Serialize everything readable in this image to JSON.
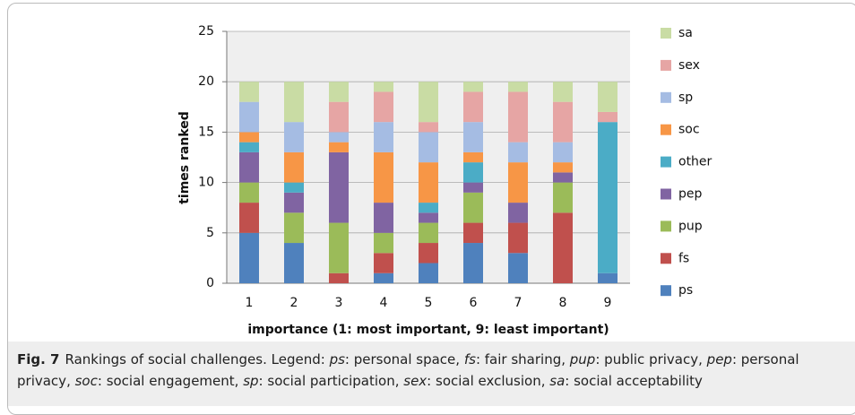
{
  "chart_data": {
    "type": "stacked_bar",
    "ylabel": "times ranked",
    "xlabel": "importance (1: most important, 9: least important)",
    "categories": [
      "1",
      "2",
      "3",
      "4",
      "5",
      "6",
      "7",
      "8",
      "9"
    ],
    "ylim": [
      0,
      25
    ],
    "yticks": [
      0,
      5,
      10,
      15,
      20,
      25
    ],
    "grid": true,
    "legend": "right",
    "series": [
      {
        "name": "ps",
        "color": "#4f81bd",
        "values": [
          5,
          4,
          0,
          1,
          2,
          4,
          3,
          0,
          1
        ]
      },
      {
        "name": "fs",
        "color": "#c0504d",
        "values": [
          3,
          0,
          1,
          2,
          2,
          2,
          3,
          7,
          0
        ]
      },
      {
        "name": "pup",
        "color": "#9bbb59",
        "values": [
          2,
          3,
          5,
          2,
          2,
          3,
          0,
          3,
          0
        ]
      },
      {
        "name": "pep",
        "color": "#8064a2",
        "values": [
          3,
          2,
          7,
          3,
          1,
          1,
          2,
          1,
          0
        ]
      },
      {
        "name": "other",
        "color": "#4bacc6",
        "values": [
          1,
          1,
          0,
          0,
          1,
          2,
          0,
          0,
          15
        ]
      },
      {
        "name": "soc",
        "color": "#f79646",
        "values": [
          1,
          3,
          1,
          5,
          4,
          1,
          4,
          1,
          0
        ]
      },
      {
        "name": "sp",
        "color": "#a5bce3",
        "values": [
          3,
          3,
          1,
          3,
          3,
          3,
          2,
          2,
          0
        ]
      },
      {
        "name": "sex",
        "color": "#e6a5a4",
        "values": [
          0,
          0,
          3,
          3,
          1,
          3,
          5,
          4,
          1
        ]
      },
      {
        "name": "sa",
        "color": "#c9dca4",
        "values": [
          2,
          4,
          2,
          1,
          4,
          1,
          1,
          2,
          3
        ]
      }
    ]
  },
  "caption": {
    "label": "Fig. 7",
    "text": "Rankings of social challenges. Legend:",
    "items": [
      {
        "term": "ps",
        "definition": "personal space"
      },
      {
        "term": "fs",
        "definition": "fair sharing"
      },
      {
        "term": "pup",
        "definition": "public privacy"
      },
      {
        "term": "pep",
        "definition": "personal privacy"
      },
      {
        "term": "soc",
        "definition": "social engagement"
      },
      {
        "term": "sp",
        "definition": "social participation"
      },
      {
        "term": "sex",
        "definition": "social exclusion"
      },
      {
        "term": "sa",
        "definition": "social acceptability"
      }
    ]
  }
}
